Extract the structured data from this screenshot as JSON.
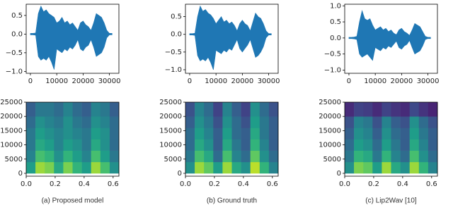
{
  "chart_data": [
    {
      "type": "area",
      "color": "#1f77b4",
      "xlim": [
        -1600,
        33600
      ],
      "ylim": [
        -1.05,
        0.8
      ],
      "xticks": [
        0,
        10000,
        20000,
        30000
      ],
      "yticks": [
        {
          "value": -1.0,
          "label": "−1.0"
        },
        {
          "value": -0.5,
          "label": "−0.5"
        },
        {
          "value": 0,
          "label": "0.0"
        },
        {
          "value": 0.5,
          "label": "0.5"
        }
      ],
      "x": [
        0,
        1000,
        2000,
        3000,
        4000,
        5000,
        6000,
        7000,
        8000,
        9000,
        10000,
        11000,
        12000,
        13000,
        14000,
        15000,
        16000,
        17000,
        18000,
        19000,
        20000,
        21000,
        22000,
        23000,
        24000,
        25000,
        26000,
        27000,
        28000,
        29000,
        30000,
        31000
      ],
      "upper": [
        0.02,
        0.02,
        0.03,
        0.55,
        0.75,
        0.6,
        0.65,
        0.55,
        0.5,
        0.45,
        0.3,
        0.35,
        0.45,
        0.3,
        0.35,
        0.25,
        0.3,
        0.2,
        0.1,
        0.3,
        0.35,
        0.25,
        0.2,
        0.1,
        0.3,
        0.55,
        0.5,
        0.45,
        0.3,
        0.1,
        0.02,
        0.02
      ],
      "lower": [
        -0.02,
        -0.02,
        -0.03,
        -0.6,
        -0.7,
        -0.65,
        -0.7,
        -0.6,
        -0.75,
        -0.95,
        -0.4,
        -0.45,
        -0.5,
        -0.4,
        -0.45,
        -0.35,
        -0.4,
        -0.3,
        -0.15,
        -0.4,
        -0.45,
        -0.35,
        -0.3,
        -0.15,
        -0.35,
        -0.6,
        -0.55,
        -0.5,
        -0.35,
        -0.1,
        -0.02,
        -0.02
      ]
    },
    {
      "type": "area",
      "color": "#1f77b4",
      "xlim": [
        -1600,
        33600
      ],
      "ylim": [
        -1.1,
        0.85
      ],
      "xticks": [
        0,
        10000,
        20000,
        30000
      ],
      "yticks": [
        {
          "value": -1.0,
          "label": "−1.0"
        },
        {
          "value": -0.5,
          "label": "−0.5"
        },
        {
          "value": 0,
          "label": "0.0"
        },
        {
          "value": 0.5,
          "label": "0.5"
        }
      ],
      "x": [
        0,
        1000,
        2000,
        3000,
        4000,
        5000,
        6000,
        7000,
        8000,
        9000,
        10000,
        11000,
        12000,
        13000,
        14000,
        15000,
        16000,
        17000,
        18000,
        19000,
        20000,
        21000,
        22000,
        23000,
        24000,
        25000,
        26000,
        27000,
        28000,
        29000,
        30000,
        31000
      ],
      "upper": [
        0.02,
        0.02,
        0.03,
        0.5,
        0.8,
        0.65,
        0.7,
        0.6,
        0.55,
        0.45,
        0.3,
        0.4,
        0.5,
        0.35,
        0.4,
        0.3,
        0.35,
        0.25,
        0.1,
        0.3,
        0.4,
        0.3,
        0.25,
        0.1,
        0.35,
        0.6,
        0.5,
        0.45,
        0.3,
        0.1,
        0.02,
        0.02
      ],
      "lower": [
        -0.02,
        -0.02,
        -0.03,
        -0.6,
        -0.75,
        -0.7,
        -0.75,
        -0.65,
        -0.8,
        -1.0,
        -0.45,
        -0.5,
        -0.55,
        -0.45,
        -0.5,
        -0.4,
        -0.45,
        -0.3,
        -0.15,
        -0.4,
        -0.5,
        -0.4,
        -0.3,
        -0.15,
        -0.4,
        -0.65,
        -0.6,
        -0.5,
        -0.35,
        -0.1,
        -0.02,
        -0.02
      ]
    },
    {
      "type": "area",
      "color": "#1f77b4",
      "xlim": [
        -1600,
        33600
      ],
      "ylim": [
        -1.1,
        1.05
      ],
      "xticks": [
        0,
        10000,
        20000,
        30000
      ],
      "yticks": [
        {
          "value": -1.0,
          "label": "−1.0"
        },
        {
          "value": -0.5,
          "label": "−0.5"
        },
        {
          "value": 0,
          "label": "0.0"
        },
        {
          "value": 0.5,
          "label": "0.5"
        },
        {
          "value": 1.0,
          "label": "1.0"
        }
      ],
      "x": [
        0,
        1000,
        2000,
        3000,
        4000,
        5000,
        6000,
        7000,
        8000,
        9000,
        10000,
        11000,
        12000,
        13000,
        14000,
        15000,
        16000,
        17000,
        18000,
        19000,
        20000,
        21000,
        22000,
        23000,
        24000,
        25000,
        26000,
        27000,
        28000,
        29000,
        30000,
        31000
      ],
      "upper": [
        0.02,
        0.02,
        0.03,
        0.05,
        0.5,
        0.85,
        0.6,
        0.55,
        0.6,
        0.4,
        0.25,
        0.3,
        0.35,
        0.25,
        0.3,
        0.2,
        0.25,
        0.15,
        0.1,
        0.25,
        0.3,
        0.2,
        0.15,
        0.08,
        0.25,
        0.45,
        0.4,
        0.35,
        0.2,
        0.05,
        0.02,
        0.02
      ],
      "lower": [
        -0.02,
        -0.02,
        -0.03,
        -0.05,
        -0.5,
        -0.6,
        -0.55,
        -0.5,
        -0.6,
        -0.7,
        -0.3,
        -0.35,
        -0.4,
        -0.3,
        -0.35,
        -0.25,
        -0.3,
        -0.2,
        -0.1,
        -0.3,
        -0.35,
        -0.25,
        -0.2,
        -0.08,
        -0.3,
        -0.5,
        -0.45,
        -0.4,
        -0.25,
        -0.05,
        -0.02,
        -0.02
      ]
    },
    {
      "type": "heatmap",
      "caption": "(a) Proposed model",
      "xlim": [
        0,
        0.64
      ],
      "ylim": [
        -1000,
        25000
      ],
      "xticks": [
        {
          "value": 0,
          "label": "0.0"
        },
        0.2,
        0.4,
        0.6
      ],
      "yticks": [
        0,
        5000,
        10000,
        15000,
        20000,
        25000
      ],
      "xbins": [
        0,
        0.064,
        0.128,
        0.192,
        0.256,
        0.32,
        0.384,
        0.448,
        0.512,
        0.576,
        0.64
      ],
      "ybins": [
        0,
        4000,
        8000,
        12000,
        16000,
        20000,
        25000
      ],
      "z": [
        [
          0.55,
          0.85,
          0.8,
          0.6,
          0.8,
          0.65,
          0.55,
          0.85,
          0.7,
          0.5
        ],
        [
          0.45,
          0.7,
          0.65,
          0.5,
          0.65,
          0.55,
          0.45,
          0.7,
          0.55,
          0.4
        ],
        [
          0.4,
          0.6,
          0.55,
          0.45,
          0.55,
          0.5,
          0.4,
          0.6,
          0.5,
          0.35
        ],
        [
          0.4,
          0.55,
          0.5,
          0.45,
          0.5,
          0.45,
          0.4,
          0.55,
          0.5,
          0.35
        ],
        [
          0.35,
          0.5,
          0.45,
          0.4,
          0.5,
          0.4,
          0.35,
          0.5,
          0.45,
          0.35
        ],
        [
          0.3,
          0.4,
          0.4,
          0.35,
          0.45,
          0.35,
          0.3,
          0.45,
          0.4,
          0.3
        ]
      ]
    },
    {
      "type": "heatmap",
      "caption": "(b) Ground truth",
      "xlim": [
        0,
        0.64
      ],
      "ylim": [
        -1000,
        25000
      ],
      "xticks": [
        {
          "value": 0,
          "label": "0.0"
        },
        0.2,
        0.4,
        0.6
      ],
      "yticks": [
        0,
        5000,
        10000,
        15000,
        20000,
        25000
      ],
      "xbins": [
        0,
        0.064,
        0.128,
        0.192,
        0.256,
        0.32,
        0.384,
        0.448,
        0.512,
        0.576,
        0.64
      ],
      "ybins": [
        0,
        4000,
        8000,
        12000,
        16000,
        20000,
        25000
      ],
      "z": [
        [
          0.5,
          0.85,
          0.75,
          0.55,
          0.85,
          0.6,
          0.5,
          0.9,
          0.65,
          0.45
        ],
        [
          0.4,
          0.7,
          0.6,
          0.35,
          0.7,
          0.45,
          0.35,
          0.75,
          0.5,
          0.35
        ],
        [
          0.35,
          0.6,
          0.5,
          0.3,
          0.6,
          0.4,
          0.3,
          0.65,
          0.45,
          0.3
        ],
        [
          0.35,
          0.55,
          0.45,
          0.3,
          0.55,
          0.35,
          0.3,
          0.6,
          0.4,
          0.3
        ],
        [
          0.3,
          0.5,
          0.4,
          0.25,
          0.5,
          0.35,
          0.25,
          0.55,
          0.4,
          0.3
        ],
        [
          0.25,
          0.45,
          0.35,
          0.2,
          0.45,
          0.3,
          0.2,
          0.5,
          0.35,
          0.25
        ]
      ]
    },
    {
      "type": "heatmap",
      "caption": "(c) Lip2Wav [10]",
      "xlim": [
        0,
        0.64
      ],
      "ylim": [
        -1000,
        25000
      ],
      "xticks": [
        {
          "value": 0,
          "label": "0.0"
        },
        0.2,
        0.4,
        0.6
      ],
      "yticks": [
        0,
        5000,
        10000,
        15000,
        20000,
        25000
      ],
      "xbins": [
        0,
        0.064,
        0.128,
        0.192,
        0.256,
        0.32,
        0.384,
        0.448,
        0.512,
        0.576,
        0.64
      ],
      "ybins": [
        0,
        4000,
        8000,
        12000,
        16000,
        20000,
        25000
      ],
      "z": [
        [
          0.5,
          0.8,
          0.75,
          0.55,
          0.85,
          0.6,
          0.5,
          0.85,
          0.65,
          0.45
        ],
        [
          0.4,
          0.65,
          0.6,
          0.4,
          0.65,
          0.45,
          0.35,
          0.7,
          0.5,
          0.35
        ],
        [
          0.35,
          0.55,
          0.5,
          0.35,
          0.55,
          0.4,
          0.3,
          0.6,
          0.45,
          0.3
        ],
        [
          0.3,
          0.5,
          0.45,
          0.3,
          0.5,
          0.35,
          0.3,
          0.55,
          0.4,
          0.3
        ],
        [
          0.25,
          0.45,
          0.4,
          0.25,
          0.45,
          0.3,
          0.25,
          0.5,
          0.35,
          0.25
        ],
        [
          0.12,
          0.2,
          0.18,
          0.12,
          0.2,
          0.15,
          0.12,
          0.22,
          0.15,
          0.1
        ]
      ]
    }
  ]
}
